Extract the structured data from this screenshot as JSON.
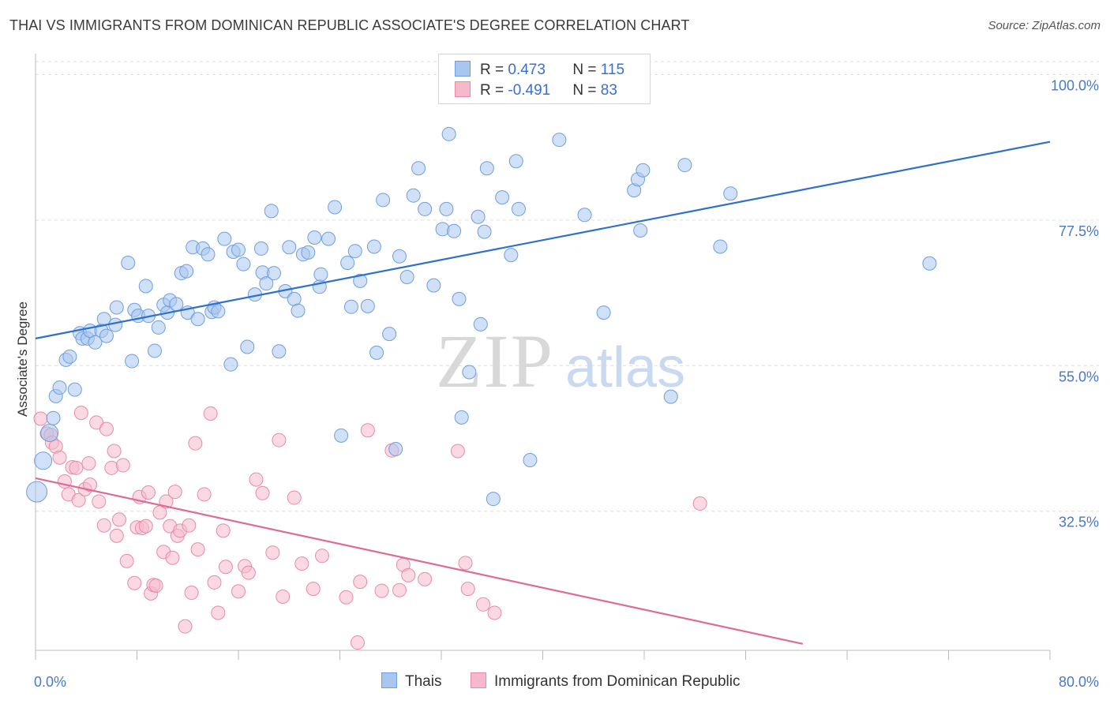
{
  "title": "THAI VS IMMIGRANTS FROM DOMINICAN REPUBLIC ASSOCIATE'S DEGREE CORRELATION CHART",
  "source": "Source: ZipAtlas.com",
  "watermark": {
    "zip": "ZIP",
    "atlas": "atlas"
  },
  "legend": {
    "rows": [
      {
        "r_label": "R = ",
        "r_value": "0.473",
        "n_label": "N = ",
        "n_value": "115"
      },
      {
        "r_label": "R = ",
        "r_value": "-0.491",
        "n_label": "N = ",
        "n_value": "83"
      }
    ]
  },
  "bottom_legend": {
    "series1": "Thais",
    "series2": "Immigrants from Dominican Republic"
  },
  "colors": {
    "blue_fill": "#a9c6ef",
    "blue_stroke": "#6f9ee0",
    "blue_line": "#2f6fd0",
    "pink_fill": "#f6b9cc",
    "pink_stroke": "#e88aa9",
    "pink_line": "#e06a97",
    "grid": "#dddddd",
    "tick_text": "#4a78c8"
  },
  "chart_data": {
    "type": "scatter",
    "title": "THAI VS IMMIGRANTS FROM DOMINICAN REPUBLIC ASSOCIATE'S DEGREE CORRELATION CHART",
    "xlabel": "",
    "ylabel": "Associate's Degree",
    "xlim": [
      0,
      80
    ],
    "ylim": [
      11,
      102
    ],
    "x_tick_labels": [
      "0.0%",
      "80.0%"
    ],
    "y_ticks": [
      32.5,
      55.0,
      77.5,
      100.0
    ],
    "y_tick_labels": [
      "32.5%",
      "55.0%",
      "77.5%",
      "100.0%"
    ],
    "grid": true,
    "legend_position": "top-center",
    "series": [
      {
        "name": "Thais",
        "r": 0.473,
        "n": 115,
        "trend": {
          "x": [
            0,
            80
          ],
          "y": [
            59.2,
            89.6
          ]
        },
        "points": [
          [
            0.1,
            35.5
          ],
          [
            0.6,
            40.3
          ],
          [
            1.1,
            44.6
          ],
          [
            1.4,
            46.9
          ],
          [
            1.6,
            50.3
          ],
          [
            1.9,
            51.6
          ],
          [
            2.4,
            55.9
          ],
          [
            2.7,
            56.4
          ],
          [
            3.1,
            51.3
          ],
          [
            3.5,
            60.0
          ],
          [
            3.7,
            59.2
          ],
          [
            4.1,
            59.2
          ],
          [
            4.3,
            60.4
          ],
          [
            4.7,
            58.6
          ],
          [
            5.2,
            60.4
          ],
          [
            5.6,
            59.6
          ],
          [
            5.4,
            62.2
          ],
          [
            6.3,
            61.3
          ],
          [
            6.4,
            64.0
          ],
          [
            7.3,
            70.9
          ],
          [
            7.6,
            55.7
          ],
          [
            7.8,
            63.6
          ],
          [
            8.1,
            62.7
          ],
          [
            8.7,
            67.3
          ],
          [
            8.9,
            62.7
          ],
          [
            9.4,
            57.3
          ],
          [
            9.7,
            60.9
          ],
          [
            10.1,
            64.4
          ],
          [
            10.4,
            63.2
          ],
          [
            10.6,
            65.1
          ],
          [
            11.1,
            64.5
          ],
          [
            11.5,
            69.3
          ],
          [
            11.9,
            69.6
          ],
          [
            12.0,
            63.2
          ],
          [
            12.4,
            73.3
          ],
          [
            12.8,
            62.2
          ],
          [
            13.2,
            73.1
          ],
          [
            13.6,
            72.2
          ],
          [
            13.9,
            63.3
          ],
          [
            14.1,
            64.0
          ],
          [
            14.4,
            63.4
          ],
          [
            14.9,
            74.6
          ],
          [
            15.4,
            55.2
          ],
          [
            15.6,
            72.6
          ],
          [
            16.0,
            72.9
          ],
          [
            16.4,
            70.7
          ],
          [
            16.7,
            57.9
          ],
          [
            17.3,
            66.0
          ],
          [
            17.8,
            73.1
          ],
          [
            17.9,
            69.4
          ],
          [
            18.2,
            67.7
          ],
          [
            18.6,
            78.9
          ],
          [
            18.8,
            69.3
          ],
          [
            19.2,
            57.2
          ],
          [
            19.7,
            66.5
          ],
          [
            20.0,
            73.3
          ],
          [
            20.4,
            65.3
          ],
          [
            20.7,
            63.5
          ],
          [
            21.1,
            72.2
          ],
          [
            21.5,
            72.5
          ],
          [
            22.0,
            74.8
          ],
          [
            22.4,
            67.2
          ],
          [
            22.5,
            69.1
          ],
          [
            23.1,
            74.6
          ],
          [
            23.6,
            79.5
          ],
          [
            24.1,
            44.2
          ],
          [
            24.6,
            70.9
          ],
          [
            24.9,
            64.1
          ],
          [
            25.2,
            72.7
          ],
          [
            25.6,
            68.1
          ],
          [
            26.2,
            64.2
          ],
          [
            26.7,
            73.4
          ],
          [
            26.9,
            57.0
          ],
          [
            27.4,
            80.6
          ],
          [
            27.9,
            59.9
          ],
          [
            28.4,
            42.1
          ],
          [
            28.7,
            71.9
          ],
          [
            29.3,
            68.7
          ],
          [
            29.8,
            81.3
          ],
          [
            30.2,
            85.5
          ],
          [
            30.7,
            79.2
          ],
          [
            31.4,
            67.4
          ],
          [
            32.1,
            76.1
          ],
          [
            32.4,
            79.2
          ],
          [
            32.6,
            90.8
          ],
          [
            33.0,
            75.8
          ],
          [
            33.4,
            65.3
          ],
          [
            33.6,
            47.0
          ],
          [
            34.2,
            54.0
          ],
          [
            34.9,
            78.0
          ],
          [
            35.1,
            61.4
          ],
          [
            35.4,
            75.7
          ],
          [
            35.6,
            85.5
          ],
          [
            36.1,
            34.4
          ],
          [
            36.8,
            81.0
          ],
          [
            37.5,
            72.1
          ],
          [
            37.9,
            86.6
          ],
          [
            38.1,
            79.2
          ],
          [
            39.0,
            40.4
          ],
          [
            41.3,
            89.9
          ],
          [
            43.3,
            78.3
          ],
          [
            44.8,
            63.2
          ],
          [
            47.2,
            82.1
          ],
          [
            47.5,
            83.8
          ],
          [
            47.7,
            75.9
          ],
          [
            47.9,
            85.2
          ],
          [
            50.1,
            50.2
          ],
          [
            51.2,
            86.0
          ],
          [
            54.0,
            73.4
          ],
          [
            54.8,
            81.6
          ],
          [
            70.5,
            70.8
          ]
        ]
      },
      {
        "name": "Immigrants from Dominican Republic",
        "r": -0.491,
        "n": 83,
        "trend": {
          "x": [
            0,
            60.5
          ],
          "y": [
            37.6,
            12.0
          ]
        },
        "points": [
          [
            0.4,
            46.8
          ],
          [
            0.9,
            44.5
          ],
          [
            1.2,
            44.3
          ],
          [
            1.3,
            43.1
          ],
          [
            1.6,
            42.5
          ],
          [
            1.9,
            40.8
          ],
          [
            2.3,
            37.1
          ],
          [
            2.6,
            35.1
          ],
          [
            2.9,
            39.3
          ],
          [
            3.2,
            39.2
          ],
          [
            3.4,
            34.2
          ],
          [
            3.6,
            47.7
          ],
          [
            3.9,
            35.9
          ],
          [
            4.2,
            39.9
          ],
          [
            4.3,
            36.6
          ],
          [
            4.8,
            46.2
          ],
          [
            5.0,
            34.0
          ],
          [
            5.4,
            30.3
          ],
          [
            5.6,
            45.2
          ],
          [
            6.0,
            39.2
          ],
          [
            6.2,
            41.8
          ],
          [
            6.4,
            28.7
          ],
          [
            6.6,
            31.2
          ],
          [
            6.9,
            39.6
          ],
          [
            7.2,
            24.8
          ],
          [
            7.8,
            21.4
          ],
          [
            8.0,
            30.0
          ],
          [
            8.2,
            34.7
          ],
          [
            8.4,
            29.9
          ],
          [
            8.7,
            30.2
          ],
          [
            8.9,
            35.4
          ],
          [
            9.1,
            19.8
          ],
          [
            9.3,
            21.1
          ],
          [
            9.5,
            21.0
          ],
          [
            9.8,
            32.3
          ],
          [
            10.1,
            26.2
          ],
          [
            10.3,
            34.0
          ],
          [
            10.6,
            30.2
          ],
          [
            10.8,
            25.3
          ],
          [
            11.0,
            35.5
          ],
          [
            11.2,
            28.7
          ],
          [
            11.4,
            29.5
          ],
          [
            11.8,
            14.7
          ],
          [
            12.1,
            30.3
          ],
          [
            12.3,
            19.9
          ],
          [
            12.6,
            43.0
          ],
          [
            12.8,
            26.6
          ],
          [
            13.3,
            35.1
          ],
          [
            13.8,
            47.6
          ],
          [
            14.1,
            21.5
          ],
          [
            14.4,
            16.8
          ],
          [
            14.8,
            29.5
          ],
          [
            15.0,
            23.9
          ],
          [
            16.0,
            20.1
          ],
          [
            16.5,
            24.0
          ],
          [
            16.8,
            23.0
          ],
          [
            17.4,
            37.4
          ],
          [
            17.9,
            35.3
          ],
          [
            18.7,
            26.1
          ],
          [
            19.2,
            43.5
          ],
          [
            19.5,
            19.3
          ],
          [
            20.4,
            34.6
          ],
          [
            21.0,
            24.4
          ],
          [
            21.9,
            20.5
          ],
          [
            22.6,
            25.6
          ],
          [
            24.5,
            19.2
          ],
          [
            25.4,
            12.2
          ],
          [
            25.6,
            21.6
          ],
          [
            26.2,
            45.0
          ],
          [
            27.3,
            20.2
          ],
          [
            28.1,
            41.9
          ],
          [
            28.7,
            20.3
          ],
          [
            29.0,
            24.2
          ],
          [
            29.4,
            22.6
          ],
          [
            30.7,
            22.0
          ],
          [
            33.3,
            41.8
          ],
          [
            33.9,
            24.5
          ],
          [
            34.1,
            20.5
          ],
          [
            35.3,
            18.1
          ],
          [
            36.2,
            16.8
          ],
          [
            52.4,
            33.7
          ]
        ]
      }
    ]
  }
}
